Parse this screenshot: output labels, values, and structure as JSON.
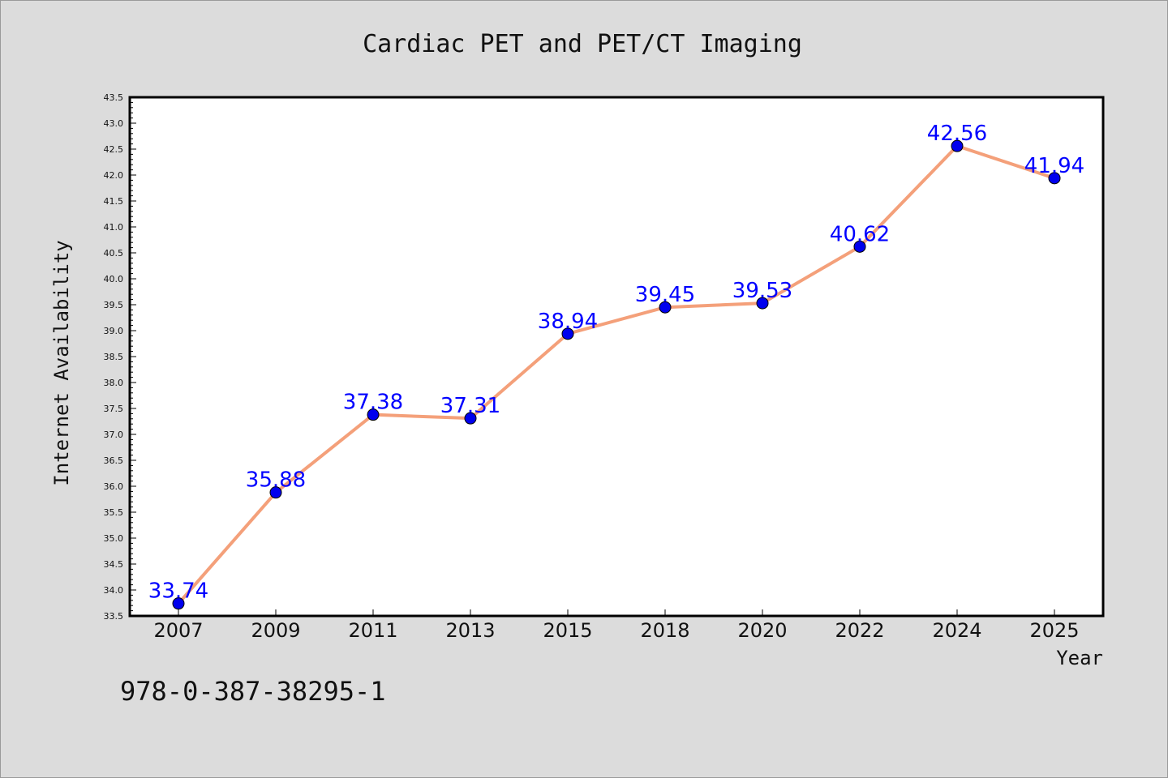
{
  "chart_data": {
    "type": "line",
    "title": "Cardiac PET and PET/CT Imaging",
    "xlabel": "Year",
    "ylabel": "Internet Availability",
    "categories": [
      "2007",
      "2009",
      "2011",
      "2013",
      "2015",
      "2018",
      "2020",
      "2022",
      "2024",
      "2025"
    ],
    "series": [
      {
        "values": [
          33.74,
          35.88,
          37.38,
          37.31,
          38.94,
          39.45,
          39.53,
          40.62,
          42.56,
          41.94
        ],
        "data_labels": [
          "33.74",
          "35.88",
          "37.38",
          "37.31",
          "38.94",
          "39.45",
          "39.53",
          "40.62",
          "42.56",
          "41.94"
        ]
      }
    ],
    "ylim": [
      33.5,
      43.5
    ],
    "yticks": [
      "33.5",
      "34.0",
      "34.5",
      "35.0",
      "35.5",
      "36.0",
      "36.5",
      "37.0",
      "37.5",
      "38.0",
      "38.5",
      "39.0",
      "39.5",
      "40.0",
      "40.5",
      "41.0",
      "41.5",
      "42.0",
      "42.5",
      "43.0",
      "43.5"
    ],
    "grid": false,
    "line_color": "#f4a07a",
    "marker_color": "#0000ee",
    "label_color": "#0000ff"
  },
  "footer_note": "978-0-387-38295-1"
}
